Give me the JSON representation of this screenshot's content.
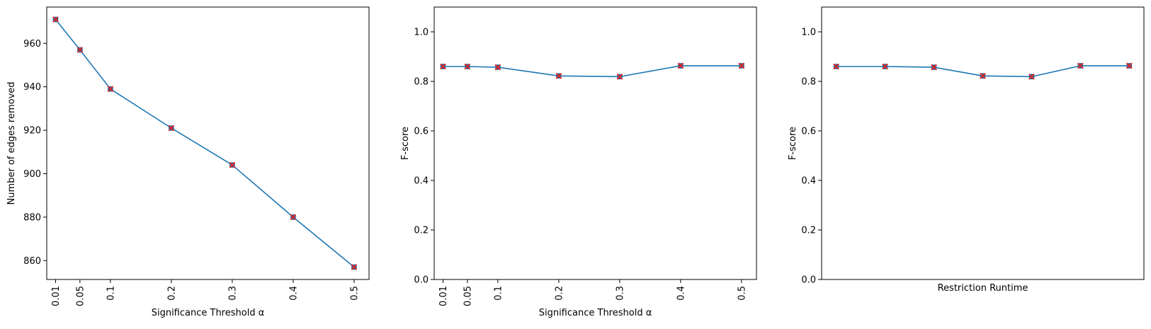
{
  "chart_data": [
    {
      "type": "line",
      "title": "",
      "xlabel": "Significance Threshold α",
      "ylabel": "Number of edges removed",
      "x": [
        0.01,
        0.05,
        0.1,
        0.2,
        0.3,
        0.4,
        0.5
      ],
      "x_tick_labels": [
        "0.01",
        "0.05",
        "0.1",
        "0.2",
        "0.3",
        "0.4",
        "0.5"
      ],
      "y_ticks": [
        860,
        880,
        900,
        920,
        940,
        960
      ],
      "y_tick_labels": [
        "860",
        "880",
        "900",
        "920",
        "940",
        "960"
      ],
      "xlim": [
        -0.0045,
        0.5245
      ],
      "ylim": [
        851.3,
        976.7
      ],
      "series": [
        {
          "values": [
            971,
            957,
            939,
            921,
            904,
            880,
            857
          ]
        }
      ],
      "line_color": "#1f77b4",
      "marker_color": "#d62728",
      "marker": "X",
      "grid": false
    },
    {
      "type": "line",
      "title": "",
      "xlabel": "Significance Threshold α",
      "ylabel": "F-score",
      "x": [
        0.01,
        0.05,
        0.1,
        0.2,
        0.3,
        0.4,
        0.5
      ],
      "x_tick_labels": [
        "0.01",
        "0.05",
        "0.1",
        "0.2",
        "0.3",
        "0.4",
        "0.5"
      ],
      "y_ticks": [
        0.0,
        0.2,
        0.4,
        0.6,
        0.8,
        1.0
      ],
      "y_tick_labels": [
        "0.0",
        "0.2",
        "0.4",
        "0.6",
        "0.8",
        "1.0"
      ],
      "xlim": [
        -0.0045,
        0.5245
      ],
      "ylim": [
        0,
        1.1
      ],
      "series": [
        {
          "values": [
            0.86,
            0.86,
            0.857,
            0.822,
            0.819,
            0.863,
            0.863
          ]
        }
      ],
      "line_color": "#1f77b4",
      "marker_color": "#d62728",
      "marker": "X",
      "grid": false
    },
    {
      "type": "line",
      "title": "",
      "xlabel": "Restriction Runtime",
      "ylabel": "F-score",
      "x": [
        0,
        1,
        2,
        3,
        4,
        5,
        6
      ],
      "x_tick_labels": [],
      "y_ticks": [
        0.0,
        0.2,
        0.4,
        0.6,
        0.8,
        1.0
      ],
      "y_tick_labels": [
        "0.0",
        "0.2",
        "0.4",
        "0.6",
        "0.8",
        "1.0"
      ],
      "xlim": [
        -0.3,
        6.3
      ],
      "ylim": [
        0,
        1.1
      ],
      "series": [
        {
          "values": [
            0.86,
            0.86,
            0.857,
            0.822,
            0.819,
            0.863,
            0.863
          ]
        }
      ],
      "line_color": "#1f77b4",
      "marker_color": "#d62728",
      "marker": "X",
      "grid": false
    }
  ]
}
